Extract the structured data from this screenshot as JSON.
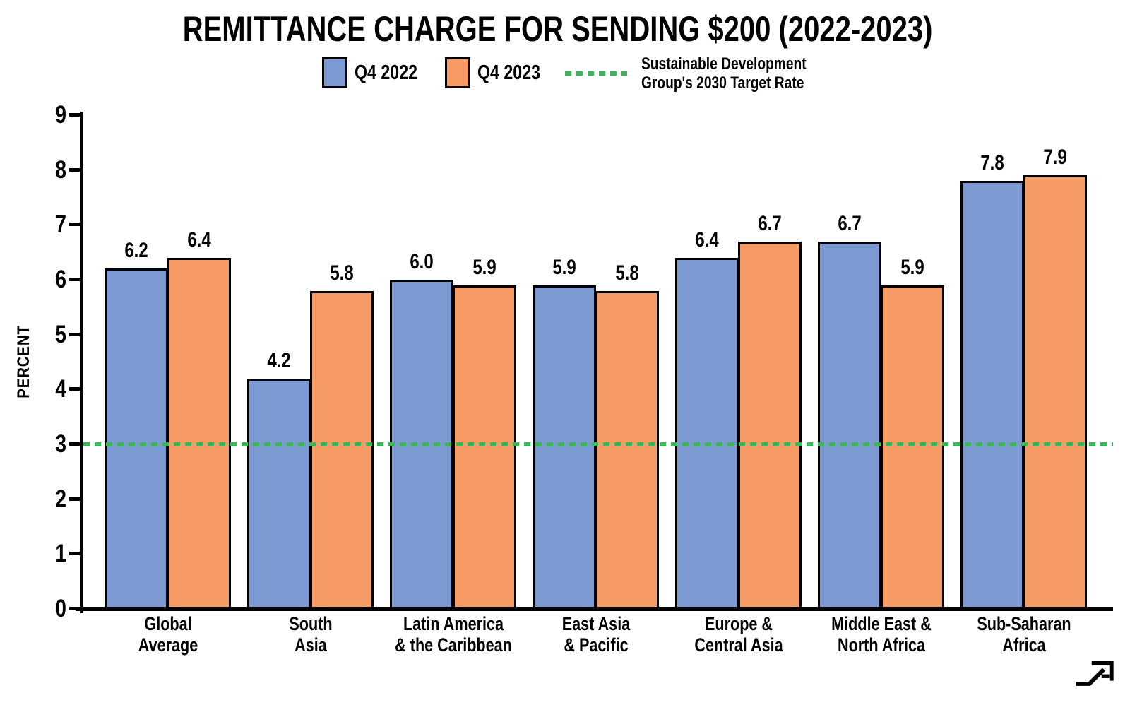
{
  "chart_data": {
    "type": "bar",
    "title": "REMITTANCE CHARGE FOR SENDING $200 (2022-2023)",
    "ylabel": "PERCENT",
    "xlabel": "",
    "ylim": [
      0,
      9
    ],
    "ytick_step": 1,
    "grid": false,
    "legend_position": "top",
    "value_labels_decimals": 1,
    "categories": [
      "Global\nAverage",
      "South\nAsia",
      "Latin America\n& the Caribbean",
      "East Asia\n& Pacific",
      "Europe &\nCentral Asia",
      "Middle East &\nNorth Africa",
      "Sub-Saharan\nAfrica"
    ],
    "series": [
      {
        "name": "Q4 2022",
        "color": "#7D99D2",
        "values": [
          6.2,
          4.2,
          6.0,
          5.9,
          6.4,
          6.7,
          7.8
        ]
      },
      {
        "name": "Q4 2023",
        "color": "#F59B63",
        "values": [
          6.4,
          5.8,
          5.9,
          5.8,
          6.7,
          5.9,
          7.9
        ]
      }
    ],
    "target_line": {
      "value": 3,
      "color": "#3CB45A",
      "label": "Sustainable Development\nGroup's 2030 Target Rate"
    },
    "axis_color": "#000000"
  },
  "icons": {
    "logo": "trend-arrow-logo"
  }
}
